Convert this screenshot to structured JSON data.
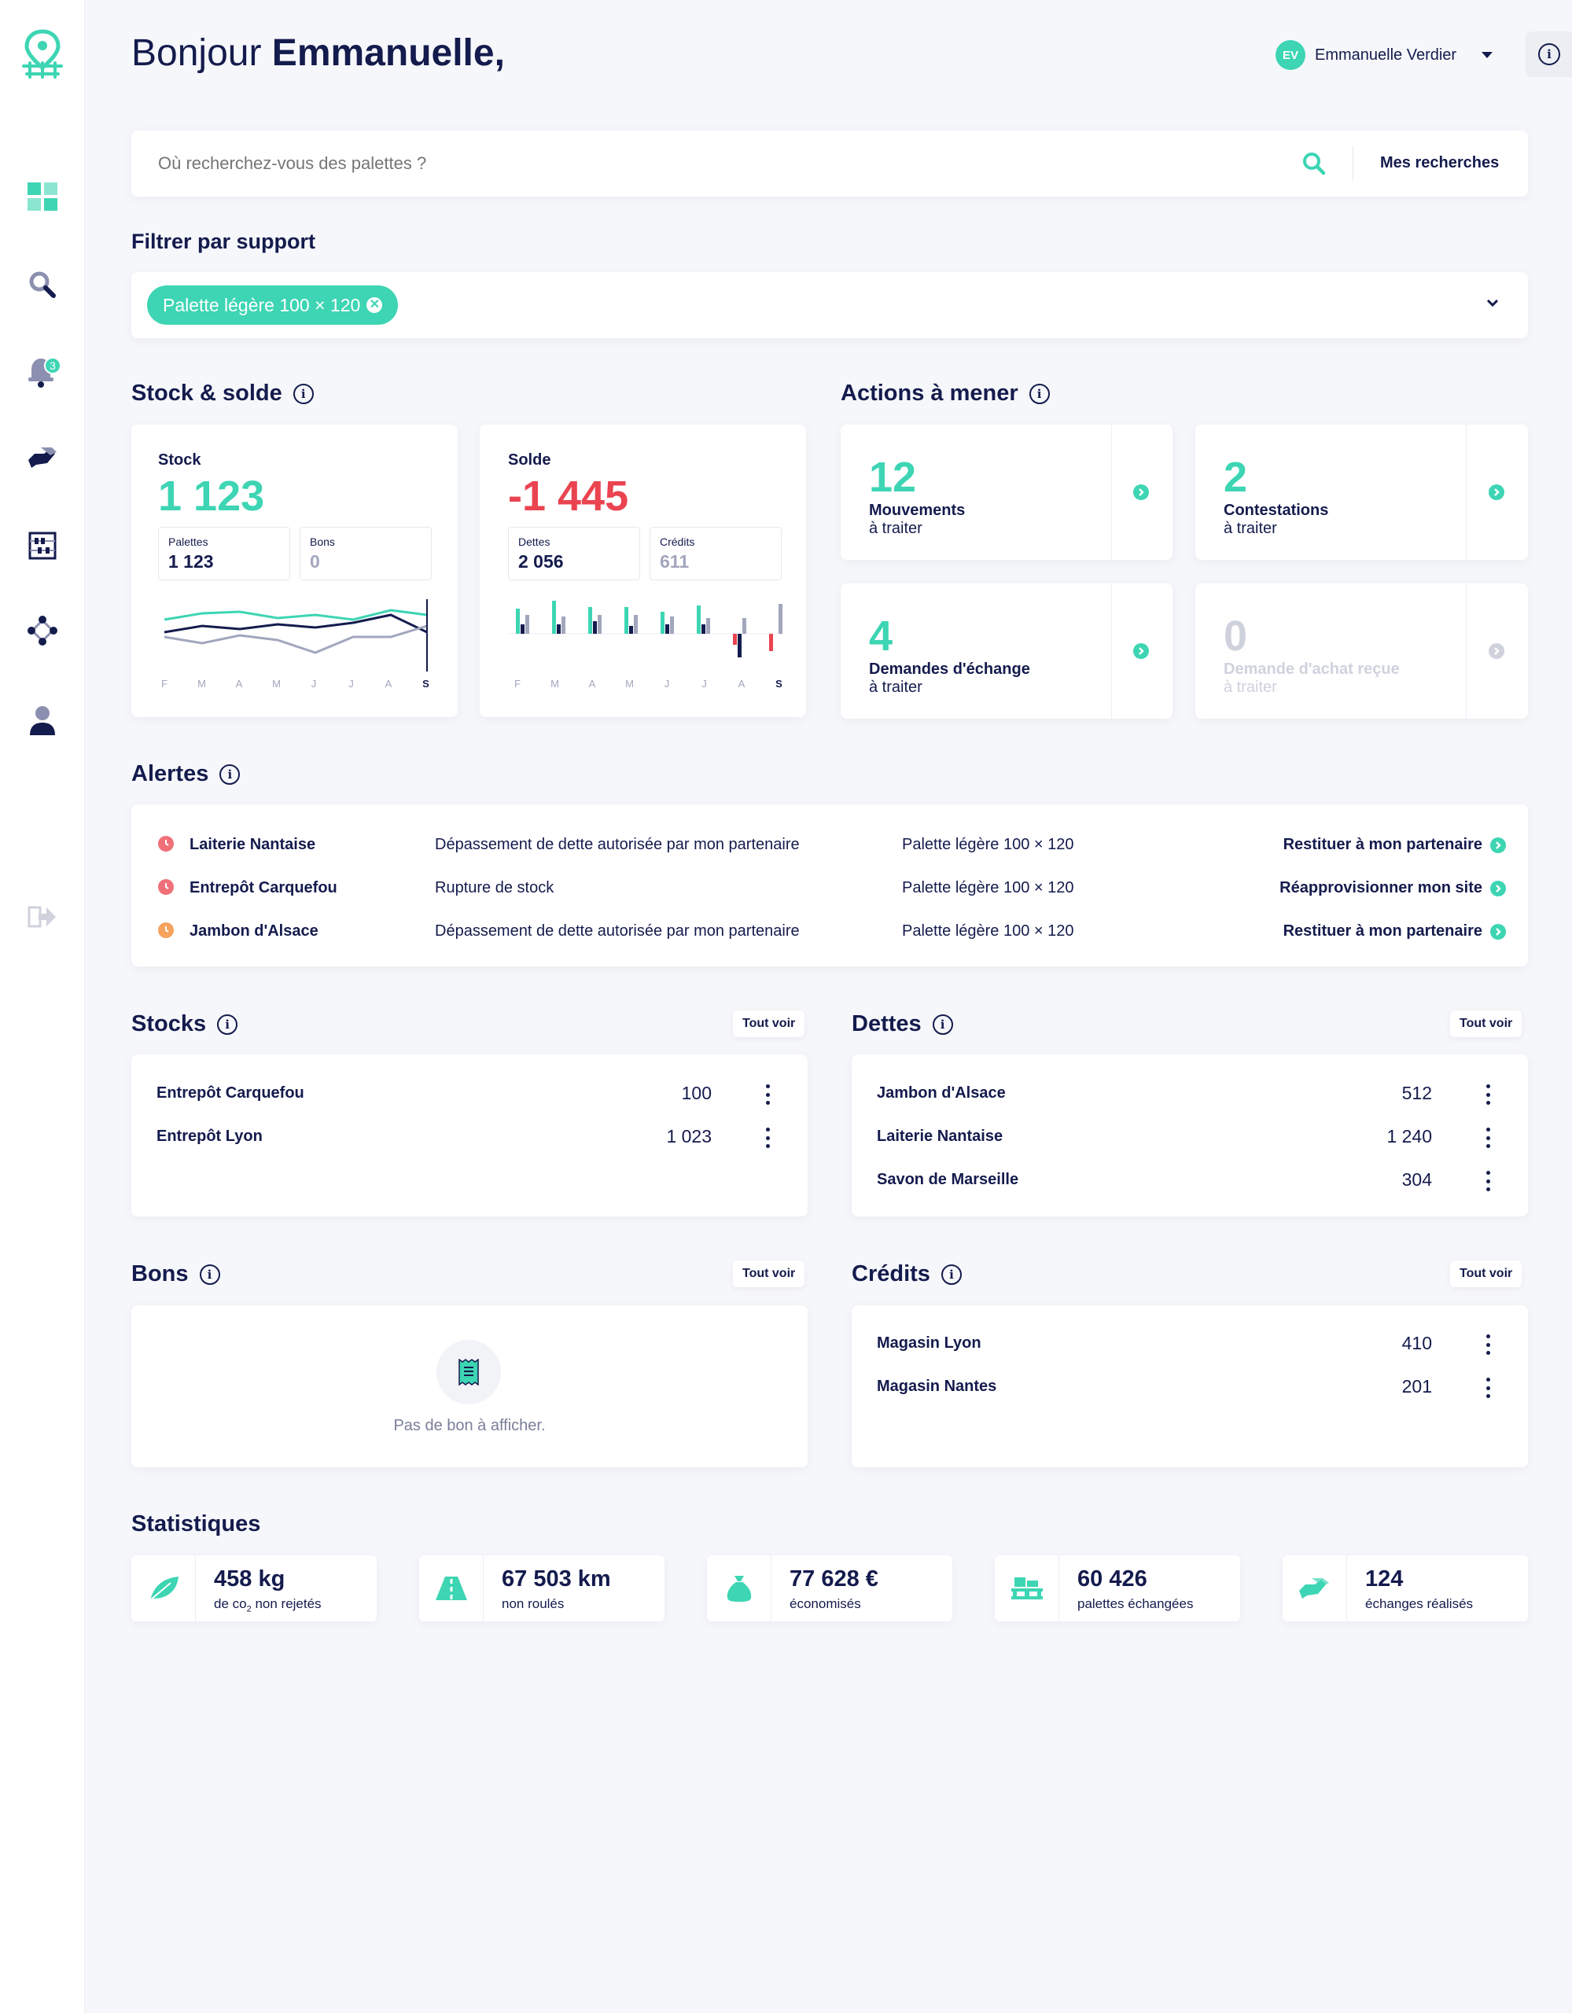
{
  "header": {
    "greeting": "Bonjour",
    "name": "Emmanuelle,",
    "user_initials": "EV",
    "user_name": "Emmanuelle Verdier"
  },
  "sidebar": {
    "notification_count": "3"
  },
  "search": {
    "placeholder": "Où recherchez-vous des palettes ?",
    "saved_label": "Mes recherches"
  },
  "filter": {
    "title": "Filtrer par support",
    "chip": "Palette légère 100 × 120"
  },
  "stock_solde": {
    "title": "Stock & solde",
    "stock": {
      "label": "Stock",
      "value": "1 123",
      "palettes_label": "Palettes",
      "palettes_value": "1 123",
      "bons_label": "Bons",
      "bons_value": "0",
      "months": [
        "F",
        "M",
        "A",
        "M",
        "J",
        "J",
        "A",
        "S"
      ]
    },
    "solde": {
      "label": "Solde",
      "value": "-1 445",
      "dettes_label": "Dettes",
      "dettes_value": "2 056",
      "credits_label": "Crédits",
      "credits_value": "611",
      "months": [
        "F",
        "M",
        "A",
        "M",
        "J",
        "J",
        "A",
        "S"
      ]
    }
  },
  "actions": {
    "title": "Actions à mener",
    "items": [
      {
        "count": "12",
        "line1": "Mouvements",
        "line2": "à traiter",
        "active": true
      },
      {
        "count": "2",
        "line1": "Contestations",
        "line2": "à traiter",
        "active": true
      },
      {
        "count": "4",
        "line1": "Demandes d'échange",
        "line2": "à traiter",
        "active": true
      },
      {
        "count": "0",
        "line1": "Demande d'achat reçue",
        "line2": "à traiter",
        "active": false
      }
    ]
  },
  "alerts": {
    "title": "Alertes",
    "rows": [
      {
        "partner": "Laiterie Nantaise",
        "message": "Dépassement de dette autorisée par mon partenaire",
        "support": "Palette légère 100 × 120",
        "action": "Restituer à mon partenaire",
        "color": "#f0707a"
      },
      {
        "partner": "Entrepôt Carquefou",
        "message": "Rupture de stock",
        "support": "Palette légère 100 × 120",
        "action": "Réapprovisionner mon site",
        "color": "#f0707a"
      },
      {
        "partner": "Jambon d'Alsace",
        "message": "Dépassement de dette autorisée par mon partenaire",
        "support": "Palette légère 100 × 120",
        "action": "Restituer à mon partenaire",
        "color": "#f5a25d"
      }
    ]
  },
  "stocks": {
    "title": "Stocks",
    "see_all": "Tout voir",
    "rows": [
      {
        "name": "Entrepôt Carquefou",
        "value": "100"
      },
      {
        "name": "Entrepôt Lyon",
        "value": "1 023"
      }
    ]
  },
  "dettes": {
    "title": "Dettes",
    "see_all": "Tout voir",
    "rows": [
      {
        "name": "Jambon d'Alsace",
        "value": "512"
      },
      {
        "name": "Laiterie Nantaise",
        "value": "1 240"
      },
      {
        "name": "Savon de Marseille",
        "value": "304"
      }
    ]
  },
  "bons": {
    "title": "Bons",
    "see_all": "Tout voir",
    "empty": "Pas de bon à afficher."
  },
  "credits": {
    "title": "Crédits",
    "see_all": "Tout voir",
    "rows": [
      {
        "name": "Magasin Lyon",
        "value": "410"
      },
      {
        "name": "Magasin Nantes",
        "value": "201"
      }
    ]
  },
  "stats": {
    "title": "Statistiques",
    "items": [
      {
        "value": "458 kg",
        "label_pre": "de co",
        "label_sub": "2",
        "label_post": " non rejetés",
        "icon": "leaf-icon"
      },
      {
        "value": "67 503 km",
        "label_pre": "non roulés",
        "icon": "road-icon"
      },
      {
        "value": "77 628 €",
        "label_pre": "économisés",
        "icon": "money-bag-icon"
      },
      {
        "value": "60 426",
        "label_pre": "palettes échangées",
        "icon": "pallet-icon"
      },
      {
        "value": "124",
        "label_pre": "échanges réalisés",
        "icon": "handshake-icon"
      }
    ]
  },
  "colors": {
    "accent": "#3dd5b3",
    "navy": "#141b4d",
    "negative": "#ea4450",
    "muted": "#a2a6bd"
  }
}
